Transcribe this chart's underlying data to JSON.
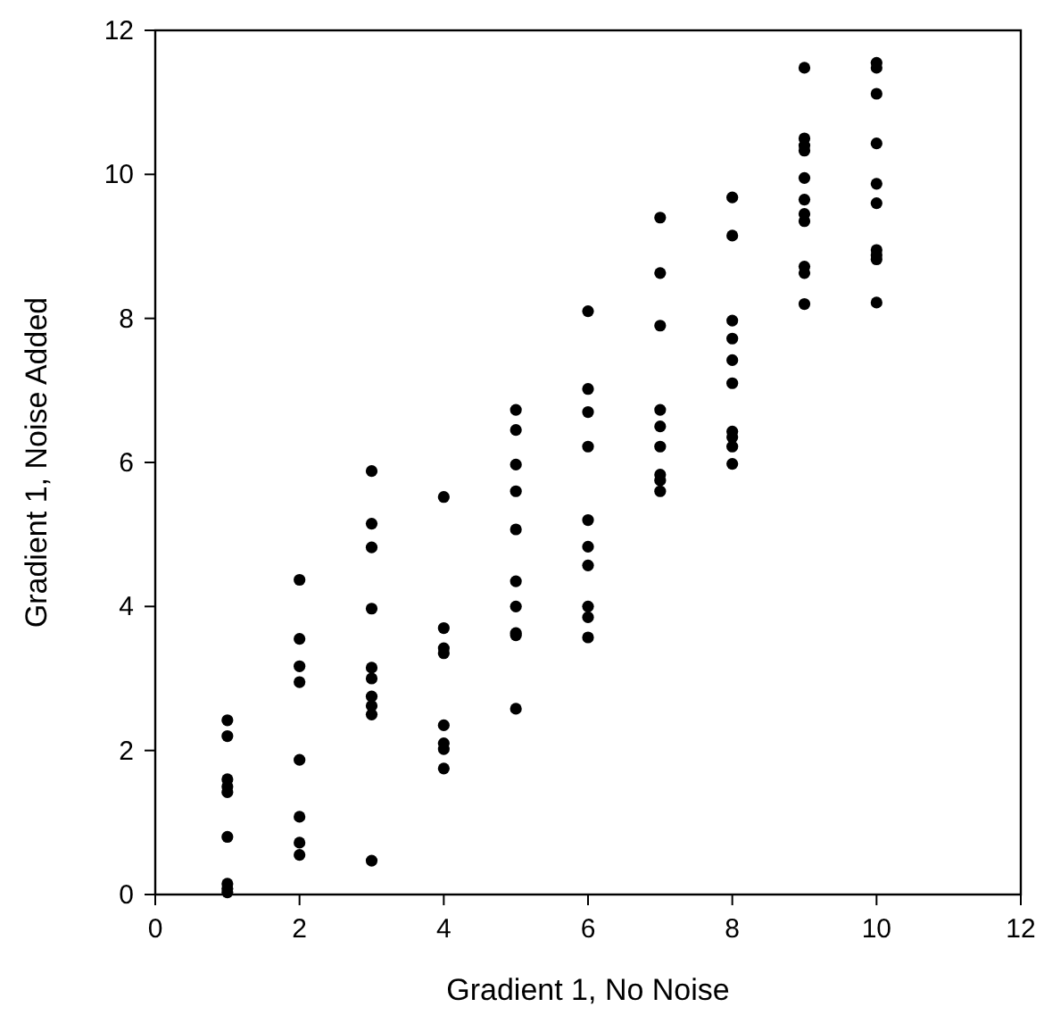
{
  "chart_data": {
    "type": "scatter",
    "xlabel": "Gradient 1, No Noise",
    "ylabel": "Gradient 1, Noise Added",
    "x": [
      1,
      1,
      1,
      1,
      1,
      1,
      1,
      1,
      1,
      2,
      2,
      2,
      2,
      2,
      2,
      2,
      2,
      3,
      3,
      3,
      3,
      3,
      3,
      3,
      3,
      3,
      3,
      4,
      4,
      4,
      4,
      4,
      4,
      4,
      4,
      5,
      5,
      5,
      5,
      5,
      5,
      5,
      5,
      5,
      5,
      6,
      6,
      6,
      6,
      6,
      6,
      6,
      6,
      6,
      6,
      7,
      7,
      7,
      7,
      7,
      7,
      7,
      7,
      7,
      8,
      8,
      8,
      8,
      8,
      8,
      8,
      8,
      8,
      8,
      9,
      9,
      9,
      9,
      9,
      9,
      9,
      9,
      9,
      9,
      9,
      10,
      10,
      10,
      10,
      10,
      10,
      10,
      10,
      10,
      10
    ],
    "series": [
      {
        "color": "#000000",
        "values": [
          2.42,
          2.2,
          1.6,
          1.5,
          1.42,
          0.8,
          0.15,
          0.08,
          0.03,
          4.37,
          3.55,
          3.17,
          2.95,
          1.87,
          1.08,
          0.72,
          0.55,
          5.88,
          5.15,
          4.82,
          3.97,
          3.15,
          3.0,
          2.75,
          2.62,
          2.5,
          0.47,
          5.52,
          3.7,
          3.42,
          3.35,
          2.35,
          2.1,
          2.02,
          1.75,
          6.73,
          6.45,
          5.97,
          5.6,
          5.07,
          4.35,
          4.0,
          3.63,
          3.6,
          2.58,
          8.1,
          7.02,
          6.7,
          6.22,
          5.2,
          4.83,
          4.57,
          4.0,
          3.85,
          3.57,
          9.4,
          8.63,
          7.9,
          6.73,
          6.5,
          6.22,
          5.83,
          5.75,
          5.6,
          9.68,
          9.15,
          7.97,
          7.72,
          7.42,
          7.1,
          6.43,
          6.35,
          6.22,
          5.98,
          11.48,
          10.5,
          10.4,
          10.33,
          9.95,
          9.65,
          9.45,
          9.35,
          8.72,
          8.63,
          8.2,
          11.55,
          11.48,
          11.12,
          10.43,
          9.87,
          9.6,
          8.95,
          8.88,
          8.82,
          8.22
        ]
      }
    ],
    "xlim": [
      0,
      12
    ],
    "ylim": [
      0,
      12
    ],
    "xticks": [
      0,
      2,
      4,
      6,
      8,
      10,
      12
    ],
    "yticks": [
      0,
      2,
      4,
      6,
      8,
      10,
      12
    ],
    "marker": "circle",
    "grid": false
  }
}
